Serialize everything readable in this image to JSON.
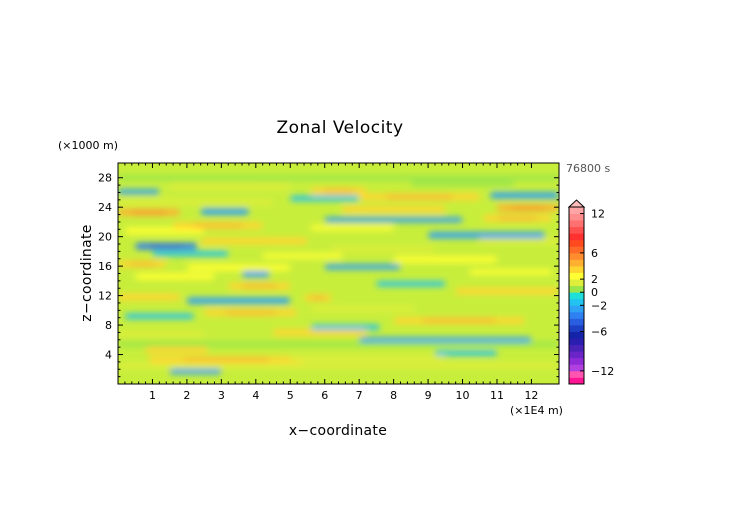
{
  "chart_data": {
    "type": "heatmap",
    "title": "Zonal Velocity",
    "xlabel": "x−coordinate",
    "ylabel": "z−coordinate",
    "x_unit": "(×1E4 m)",
    "y_unit": "(×1000 m)",
    "time_label": "76800 s",
    "x_ticks": [
      "1",
      "2",
      "3",
      "4",
      "5",
      "6",
      "7",
      "8",
      "9",
      "10",
      "11",
      "12"
    ],
    "x_tick_values": [
      1,
      2,
      3,
      4,
      5,
      6,
      7,
      8,
      9,
      10,
      11,
      12
    ],
    "xlim": [
      0,
      12.8
    ],
    "y_ticks": [
      "4",
      "8",
      "12",
      "16",
      "20",
      "24",
      "28"
    ],
    "y_tick_values": [
      4,
      8,
      12,
      16,
      20,
      24,
      28
    ],
    "ylim": [
      0,
      30
    ],
    "colorbar": {
      "levels": [
        -14,
        -13,
        -12,
        -11,
        -10,
        -9,
        -8,
        -7,
        -6,
        -5,
        -4,
        -3,
        -2,
        -1,
        0,
        1,
        2,
        3,
        4,
        5,
        6,
        7,
        8,
        9,
        10,
        11,
        12,
        13,
        14
      ],
      "colors": [
        "#ff1493",
        "#ff55b0",
        "#b040e0",
        "#8e2bd6",
        "#6a24c8",
        "#4b22b8",
        "#2a1eb0",
        "#1424a8",
        "#1c3fc4",
        "#2a5ee0",
        "#2f80f0",
        "#30a2f5",
        "#22c3f0",
        "#1fe0d8",
        "#9be64a",
        "#dfee3a",
        "#ffff33",
        "#ffd630",
        "#ffb030",
        "#ff8c2e",
        "#ff6a28",
        "#ff4a20",
        "#ff3030",
        "#ff5050",
        "#ff7070",
        "#ff8d8d",
        "#ffa5a5",
        "#ffbcbc"
      ],
      "tick_labels": [
        "12",
        "6",
        "2",
        "0",
        "−2",
        "−6",
        "−12"
      ],
      "tick_values": [
        12,
        6,
        2,
        0,
        -2,
        -6,
        -12
      ],
      "extend": "max"
    },
    "bands": [
      {
        "z": 1.7,
        "x0": 1.5,
        "x1": 3.0,
        "v": -2.5
      },
      {
        "z": 2.5,
        "x0": 0.0,
        "x1": 12.8,
        "v": 1.6
      },
      {
        "z": 3.3,
        "x0": 0.9,
        "x1": 5.4,
        "v": 3.3
      },
      {
        "z": 3.5,
        "x0": 5.0,
        "x1": 9.5,
        "v": 1.2
      },
      {
        "z": 4.2,
        "x0": 9.2,
        "x1": 11.0,
        "v": -1.6
      },
      {
        "z": 4.6,
        "x0": 0.8,
        "x1": 2.6,
        "v": 3.0
      },
      {
        "z": 5.4,
        "x0": 0.0,
        "x1": 12.8,
        "v": 0.6
      },
      {
        "z": 6.0,
        "x0": 7.0,
        "x1": 12.0,
        "v": -2.2
      },
      {
        "z": 6.8,
        "x0": 0.0,
        "x1": 2.5,
        "v": 1.5
      },
      {
        "z": 7.0,
        "x0": 4.5,
        "x1": 7.2,
        "v": 3.0
      },
      {
        "z": 7.7,
        "x0": 5.6,
        "x1": 7.6,
        "v": -1.7
      },
      {
        "z": 8.6,
        "x0": 8.0,
        "x1": 11.8,
        "v": 3.2
      },
      {
        "z": 9.2,
        "x0": 0.2,
        "x1": 2.2,
        "v": -2.0
      },
      {
        "z": 9.7,
        "x0": 2.5,
        "x1": 5.2,
        "v": 3.4
      },
      {
        "z": 10.2,
        "x0": 5.6,
        "x1": 8.6,
        "v": 1.2
      },
      {
        "z": 11.3,
        "x0": 2.0,
        "x1": 5.0,
        "v": -2.6
      },
      {
        "z": 11.8,
        "x0": 0.0,
        "x1": 1.8,
        "v": 3.0
      },
      {
        "z": 11.7,
        "x0": 5.4,
        "x1": 6.2,
        "v": 3.2
      },
      {
        "z": 12.6,
        "x0": 9.8,
        "x1": 12.8,
        "v": 3.0
      },
      {
        "z": 13.3,
        "x0": 3.2,
        "x1": 5.0,
        "v": 3.3
      },
      {
        "z": 13.6,
        "x0": 7.5,
        "x1": 9.5,
        "v": -1.2
      },
      {
        "z": 14.6,
        "x0": 0.5,
        "x1": 2.8,
        "v": 2.8
      },
      {
        "z": 14.9,
        "x0": 3.6,
        "x1": 4.4,
        "v": -3.0
      },
      {
        "z": 15.2,
        "x0": 10.2,
        "x1": 12.6,
        "v": 2.2
      },
      {
        "z": 15.8,
        "x0": 2.0,
        "x1": 5.0,
        "v": 2.6
      },
      {
        "z": 15.9,
        "x0": 6.0,
        "x1": 8.2,
        "v": -2.2
      },
      {
        "z": 16.3,
        "x0": 0.0,
        "x1": 1.4,
        "v": 3.4
      },
      {
        "z": 16.9,
        "x0": 8.0,
        "x1": 11.0,
        "v": 2.8
      },
      {
        "z": 17.4,
        "x0": 4.2,
        "x1": 6.5,
        "v": 2.5
      },
      {
        "z": 17.7,
        "x0": 1.0,
        "x1": 3.2,
        "v": -1.8
      },
      {
        "z": 18.3,
        "x0": 6.2,
        "x1": 9.2,
        "v": 1.4
      },
      {
        "z": 18.7,
        "x0": 0.5,
        "x1": 2.3,
        "v": -3.2
      },
      {
        "z": 19.4,
        "x0": 2.4,
        "x1": 5.5,
        "v": 3.0
      },
      {
        "z": 19.4,
        "x0": 10.5,
        "x1": 12.8,
        "v": 1.4
      },
      {
        "z": 20.2,
        "x0": 9.0,
        "x1": 12.4,
        "v": -2.8
      },
      {
        "z": 20.8,
        "x0": 0.2,
        "x1": 2.5,
        "v": 2.8
      },
      {
        "z": 21.2,
        "x0": 5.6,
        "x1": 8.0,
        "v": 2.4
      },
      {
        "z": 21.5,
        "x0": 1.6,
        "x1": 4.2,
        "v": 3.6
      },
      {
        "z": 22.3,
        "x0": 6.0,
        "x1": 10.0,
        "v": -2.4
      },
      {
        "z": 22.5,
        "x0": 10.6,
        "x1": 12.6,
        "v": 3.2
      },
      {
        "z": 23.3,
        "x0": 0.0,
        "x1": 1.8,
        "v": 4.0
      },
      {
        "z": 23.4,
        "x0": 2.4,
        "x1": 3.8,
        "v": -3.0
      },
      {
        "z": 23.7,
        "x0": 6.5,
        "x1": 9.5,
        "v": 3.0
      },
      {
        "z": 23.9,
        "x0": 11.0,
        "x1": 12.8,
        "v": 4.2
      },
      {
        "z": 24.7,
        "x0": 0.0,
        "x1": 4.5,
        "v": 1.0
      },
      {
        "z": 25.2,
        "x0": 5.0,
        "x1": 7.0,
        "v": -1.6
      },
      {
        "z": 25.4,
        "x0": 7.0,
        "x1": 10.5,
        "v": 3.6
      },
      {
        "z": 25.6,
        "x0": 10.8,
        "x1": 12.8,
        "v": -2.8
      },
      {
        "z": 26.1,
        "x0": 0.0,
        "x1": 1.2,
        "v": -2.4
      },
      {
        "z": 26.2,
        "x0": 5.6,
        "x1": 7.2,
        "v": 3.4
      },
      {
        "z": 26.8,
        "x0": 1.5,
        "x1": 5.0,
        "v": 1.4
      },
      {
        "z": 27.2,
        "x0": 8.5,
        "x1": 11.5,
        "v": 0.8
      },
      {
        "z": 28.0,
        "x0": 0.0,
        "x1": 12.8,
        "v": 0.4
      }
    ]
  }
}
